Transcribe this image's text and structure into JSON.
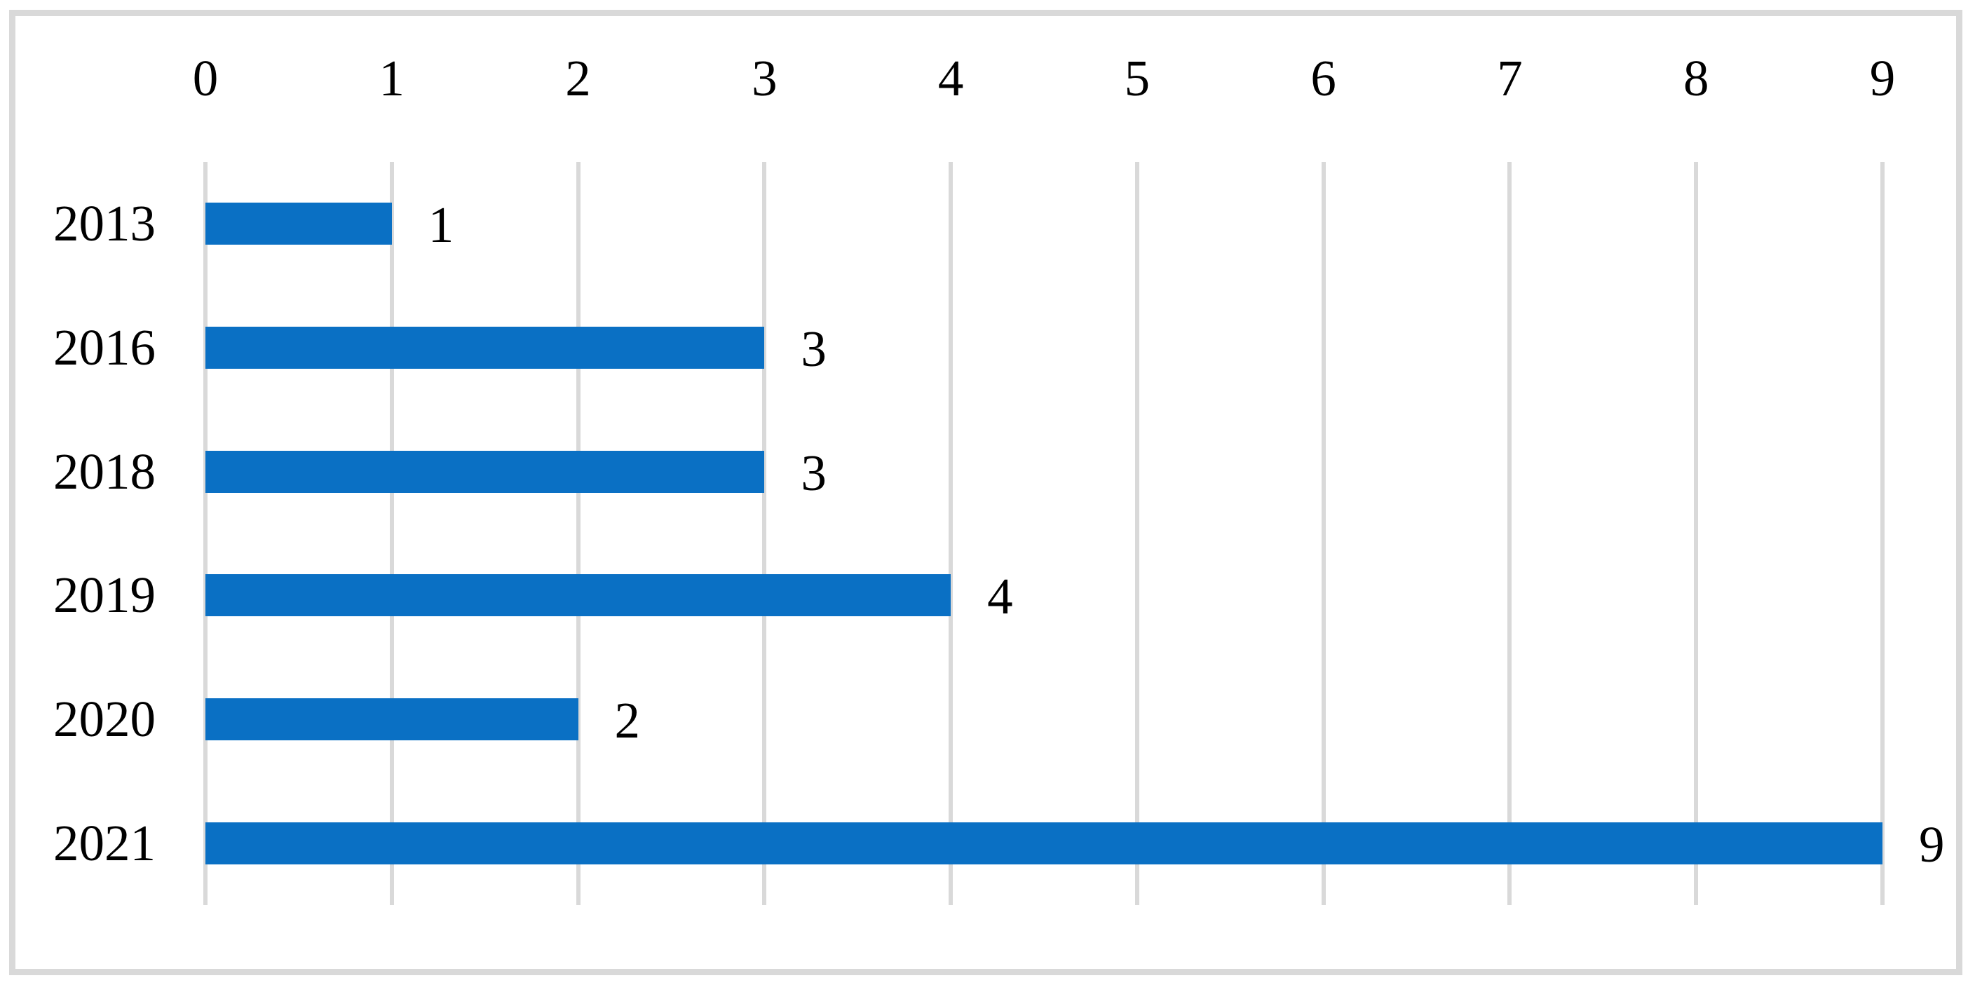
{
  "chart_data": {
    "type": "bar",
    "orientation": "horizontal",
    "title": "",
    "xlabel": "",
    "ylabel": "",
    "categories": [
      "2013",
      "2016",
      "2018",
      "2019",
      "2020",
      "2021"
    ],
    "values": [
      1,
      3,
      3,
      4,
      2,
      9
    ],
    "data_labels": [
      "1",
      "3",
      "3",
      "4",
      "2",
      "9"
    ],
    "x_ticks": [
      "0",
      "1",
      "2",
      "3",
      "4",
      "5",
      "6",
      "7",
      "8",
      "9"
    ],
    "xlim": [
      0,
      9
    ],
    "axis_position": "top",
    "grid": "vertical-only",
    "legend": "none",
    "colors": {
      "bar": "#0a70c4",
      "gridline": "#d9d9d9",
      "frame_border": "#d9d9d9",
      "text": "#000000",
      "background": "#ffffff"
    }
  }
}
